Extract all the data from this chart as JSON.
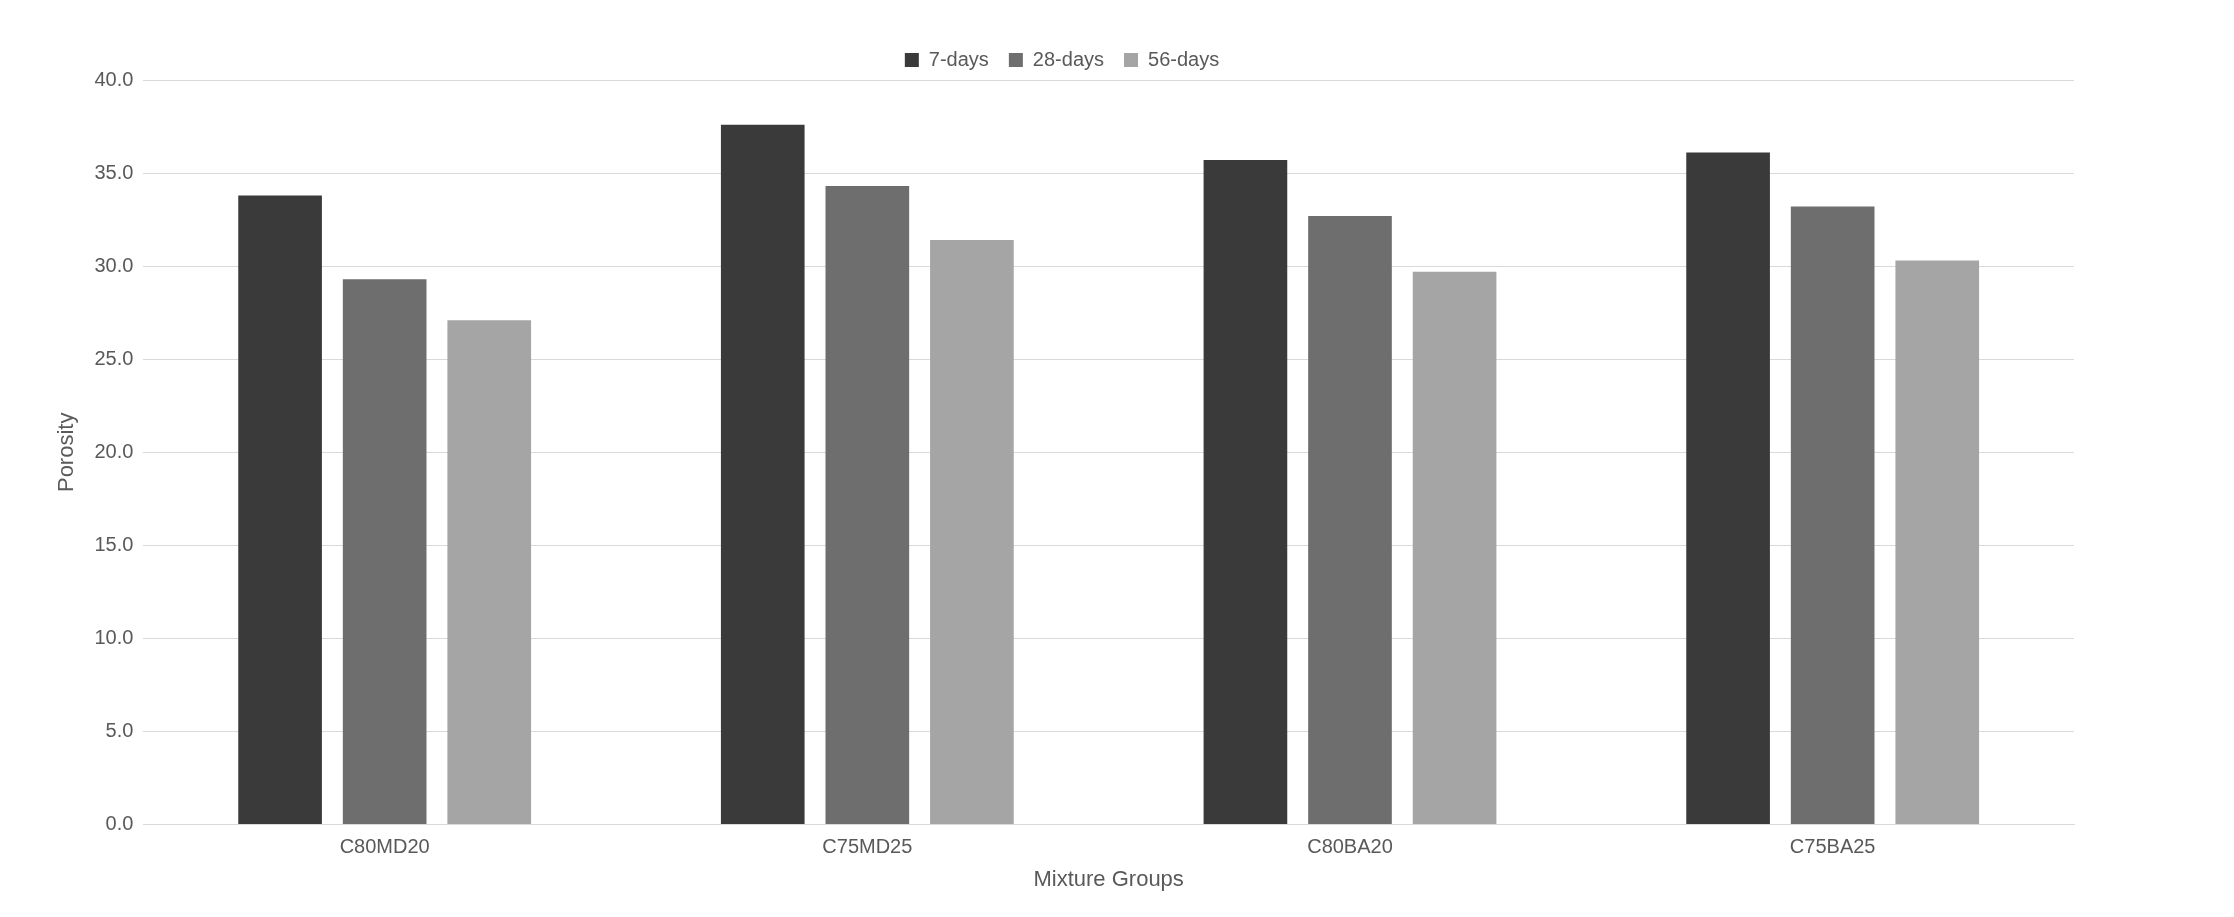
{
  "chart_data": {
    "type": "bar",
    "xlabel": "Mixture Groups",
    "ylabel": "Porosity",
    "categories": [
      "C80MD20",
      "C75MD25",
      "C80BA20",
      "C75BA25"
    ],
    "series": [
      {
        "name": "7-days",
        "color": "#3a3a3a",
        "values": [
          33.8,
          37.6,
          35.7,
          36.1
        ]
      },
      {
        "name": "28-days",
        "color": "#6e6e6e",
        "values": [
          29.3,
          34.3,
          32.7,
          33.2
        ]
      },
      {
        "name": "56-days",
        "color": "#a5a5a5",
        "values": [
          27.1,
          31.4,
          29.7,
          30.3
        ]
      }
    ],
    "ylim": [
      0,
      40
    ],
    "yticks": [
      {
        "value": 0,
        "label": "0.0"
      },
      {
        "value": 5,
        "label": "5.0"
      },
      {
        "value": 10,
        "label": "10.0"
      },
      {
        "value": 15,
        "label": "15.0"
      },
      {
        "value": 20,
        "label": "20.0"
      },
      {
        "value": 25,
        "label": "25.0"
      },
      {
        "value": 30,
        "label": "30.0"
      },
      {
        "value": 35,
        "label": "35.0"
      },
      {
        "value": 40,
        "label": "40.0"
      }
    ],
    "grid": "y",
    "legend": "top"
  }
}
